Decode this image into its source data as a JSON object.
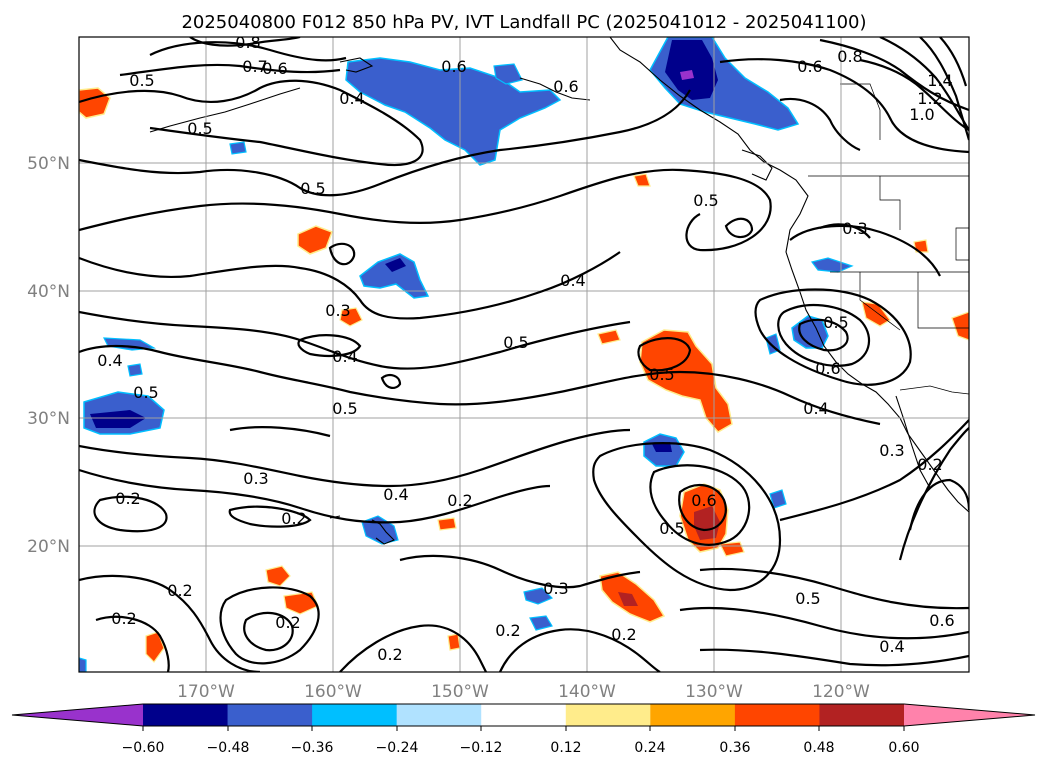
{
  "title": "2025040800 F012 850 hPa PV, IVT Landfall PC (2025041012 - 2025041100)",
  "lat_labels": [
    "50°N",
    "40°N",
    "30°N",
    "20°N"
  ],
  "lon_labels": [
    "170°W",
    "160°W",
    "150°W",
    "140°W",
    "130°W",
    "120°W"
  ],
  "colorbar": {
    "ticks": [
      "−0.60",
      "−0.48",
      "−0.36",
      "−0.24",
      "−0.12",
      "0.12",
      "0.24",
      "0.36",
      "0.48",
      "0.60"
    ],
    "colors": [
      "#9932cc",
      "#00008b",
      "#3a5fcd",
      "#00bfff",
      "#b0e2ff",
      "#ffffff",
      "#ffec8b",
      "#ffa500",
      "#ff4500",
      "#b22222",
      "#ff82ab"
    ]
  },
  "contour_labels": [
    "0.8",
    "0.7",
    "0.6",
    "0.5",
    "0.4",
    "0.5",
    "0.6",
    "0.6",
    "0.6",
    "0.8",
    "1.4",
    "1.2",
    "1.0",
    "0.5",
    "0.5",
    "0.3",
    "0.4",
    "0.3",
    "0.5",
    "0.4",
    "0.5",
    "0.5",
    "0.6",
    "0.4",
    "0.4",
    "0.5",
    "0.5",
    "0.3",
    "0.2",
    "0.2",
    "0.4",
    "0.2",
    "0.3",
    "0.6",
    "0.5",
    "0.2",
    "0.2",
    "0.2",
    "0.2",
    "0.2",
    "0.2",
    "0.5",
    "0.6",
    "0.4",
    "0.3",
    "0.2"
  ]
}
